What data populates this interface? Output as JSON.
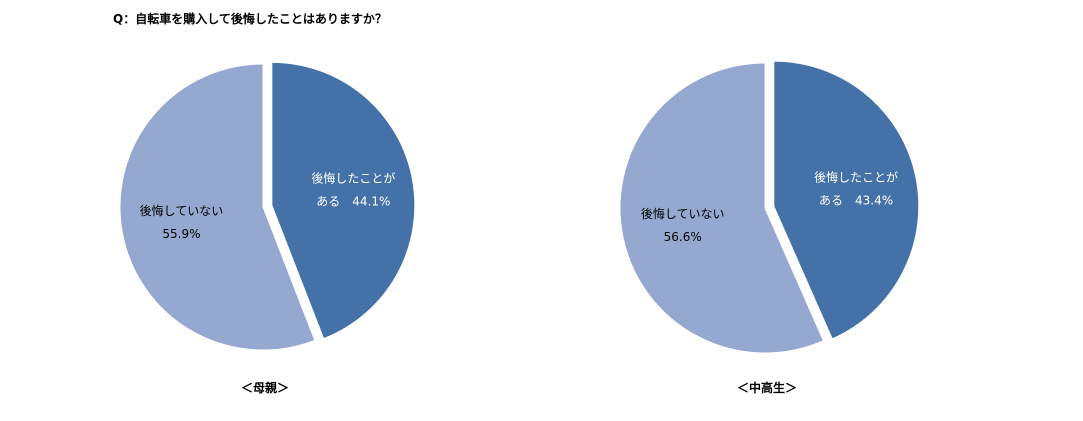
{
  "question": "Q：自転車を購入して後悔したことはありますか？",
  "colors": {
    "regret": "#4472a8",
    "no_regret": "#95a9d0"
  },
  "chart_data": [
    {
      "type": "pie",
      "group": "＜母親＞",
      "slices": [
        {
          "label": "後悔したことがある",
          "label_lines": [
            "後悔したことが",
            "ある　44.1%"
          ],
          "value": 44.1,
          "value_text": "44.1%",
          "color": "#4472a8",
          "exploded": true
        },
        {
          "label": "後悔していない",
          "label_lines": [
            "後悔していない",
            "55.9%"
          ],
          "value": 55.9,
          "value_text": "55.9%",
          "color": "#95a9d0",
          "exploded": false
        }
      ]
    },
    {
      "type": "pie",
      "group": "＜中高生＞",
      "slices": [
        {
          "label": "後悔したことがある",
          "label_lines": [
            "後悔したことが",
            "ある　43.4%"
          ],
          "value": 43.4,
          "value_text": "43.4%",
          "color": "#4472a8",
          "exploded": true
        },
        {
          "label": "後悔していない",
          "label_lines": [
            "後悔していない",
            "56.6%"
          ],
          "value": 56.6,
          "value_text": "56.6%",
          "color": "#95a9d0",
          "exploded": false
        }
      ]
    }
  ]
}
